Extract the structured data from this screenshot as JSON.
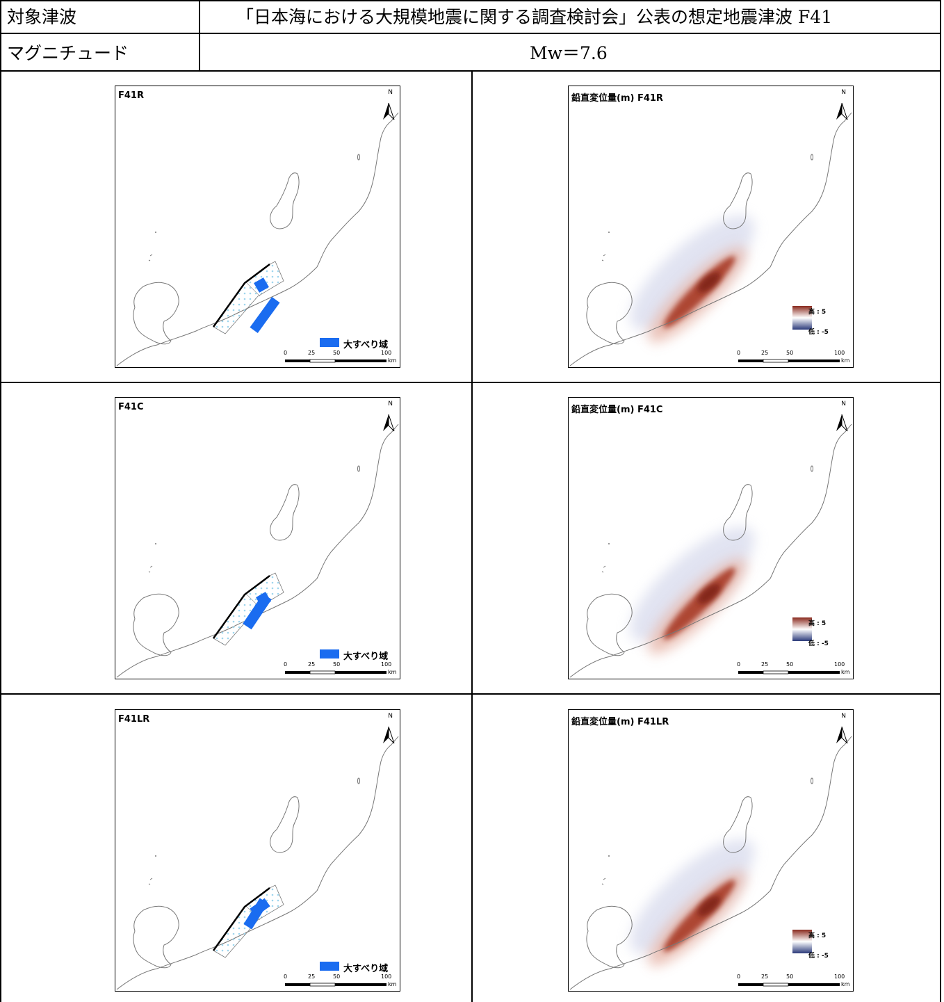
{
  "header": {
    "row1_label": "対象津波",
    "row1_value": "「日本海における大規模地震に関する調査検討会」公表の想定地震津波 F41",
    "row2_label": "マグニチュード",
    "row2_value": "Mw＝7.6"
  },
  "north_label": "N",
  "slip_legend": "大すべり域",
  "colorbar": {
    "high": "高 : 5",
    "low": "低 : -5",
    "high_color": "#8a2a1e",
    "low_color": "#2b3a7a"
  },
  "scale": {
    "ticks": [
      "0",
      "25",
      "50",
      "100"
    ],
    "unit": "km"
  },
  "colors": {
    "slip_area": "#1a6cf0",
    "fault_dots": "#9fd6ee",
    "coast": "#777777"
  },
  "rows": [
    {
      "fault_title": "F41R",
      "uplift_title": "鉛直変位量(m)  F41R"
    },
    {
      "fault_title": "F41C",
      "uplift_title": "鉛直変位量(m)  F41C"
    },
    {
      "fault_title": "F41LR",
      "uplift_title": "鉛直変位量(m)  F41LR"
    }
  ]
}
